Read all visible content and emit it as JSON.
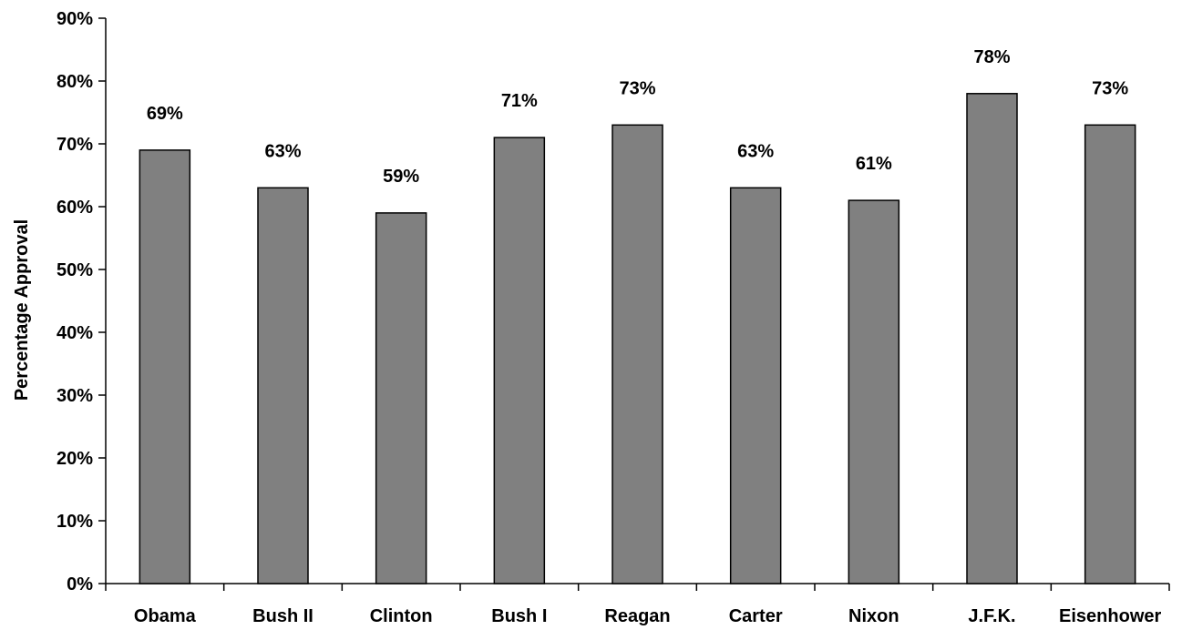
{
  "chart_data": {
    "type": "bar",
    "categories": [
      "Obama",
      "Bush II",
      "Clinton",
      "Bush I",
      "Reagan",
      "Carter",
      "Nixon",
      "J.F.K.",
      "Eisenhower"
    ],
    "values": [
      69,
      63,
      59,
      71,
      73,
      63,
      61,
      78,
      73
    ],
    "data_labels": [
      "69%",
      "63%",
      "59%",
      "71%",
      "73%",
      "63%",
      "61%",
      "78%",
      "73%"
    ],
    "ylabel": "Percentage Approval",
    "xlabel": "",
    "title": "",
    "ylim": [
      0,
      90
    ],
    "yticks": [
      0,
      10,
      20,
      30,
      40,
      50,
      60,
      70,
      80,
      90
    ],
    "ytick_labels": [
      "0%",
      "10%",
      "20%",
      "30%",
      "40%",
      "50%",
      "60%",
      "70%",
      "80%",
      "90%"
    ],
    "grid": false,
    "legend": "none",
    "bar_color": "#808080",
    "bar_edge_color": "#000000"
  }
}
